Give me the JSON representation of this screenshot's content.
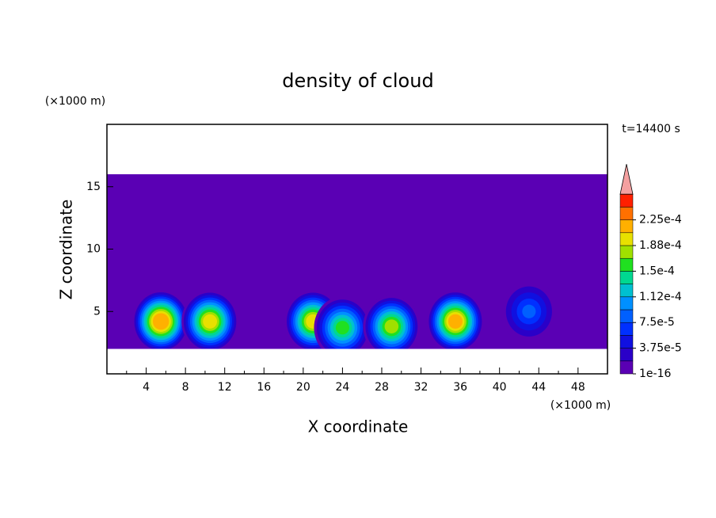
{
  "chart_data": {
    "type": "contour",
    "title": "density of cloud",
    "x_label": "X coordinate",
    "y_label": "Z coordinate",
    "x_unit": "(×1000 m)",
    "y_unit": "(×1000 m)",
    "time_label": "t=14400 s",
    "xlim": [
      0,
      51
    ],
    "xticks": [
      4,
      8,
      12,
      16,
      20,
      24,
      28,
      32,
      36,
      40,
      44,
      48
    ],
    "ylim": [
      0,
      20
    ],
    "yticks": [
      5,
      10,
      15
    ],
    "cloud_layer": {
      "x": [
        0,
        51
      ],
      "z": [
        2,
        16
      ],
      "value": 1e-16
    },
    "cells": [
      {
        "x": 5.5,
        "z": 4.2,
        "max": 0.00022
      },
      {
        "x": 10.5,
        "z": 4.2,
        "max": 0.00019
      },
      {
        "x": 21,
        "z": 4.2,
        "max": 0.00019
      },
      {
        "x": 24,
        "z": 3.7,
        "max": 0.00015
      },
      {
        "x": 29,
        "z": 3.8,
        "max": 0.00017
      },
      {
        "x": 35.5,
        "z": 4.2,
        "max": 0.00021
      },
      {
        "x": 43,
        "z": 5,
        "max": 7.5e-05
      }
    ],
    "colorbar": {
      "levels": [
        1e-16,
        1.875e-05,
        3.75e-05,
        5.625e-05,
        7.5e-05,
        9.375e-05,
        0.0001125,
        0.00013125,
        0.00015,
        0.00016875,
        0.0001875,
        0.00020625,
        0.000225,
        0.00024375
      ],
      "colors": [
        "#5a00b4",
        "#2a00c8",
        "#1010e0",
        "#0030ff",
        "#0060ff",
        "#0090ff",
        "#00c0d0",
        "#00d890",
        "#20e020",
        "#a0e000",
        "#e8e000",
        "#ffb000",
        "#ff7000",
        "#ff2000"
      ],
      "extend_color": "#f4a0a0",
      "ticks": [
        {
          "value": 1e-16,
          "label": "1e-16"
        },
        {
          "value": 3.75e-05,
          "label": "3.75e-5"
        },
        {
          "value": 7.5e-05,
          "label": "7.5e-5"
        },
        {
          "value": 0.0001125,
          "label": "1.12e-4"
        },
        {
          "value": 0.00015,
          "label": "1.5e-4"
        },
        {
          "value": 0.0001875,
          "label": "1.88e-4"
        },
        {
          "value": 0.000225,
          "label": "2.25e-4"
        }
      ]
    }
  }
}
